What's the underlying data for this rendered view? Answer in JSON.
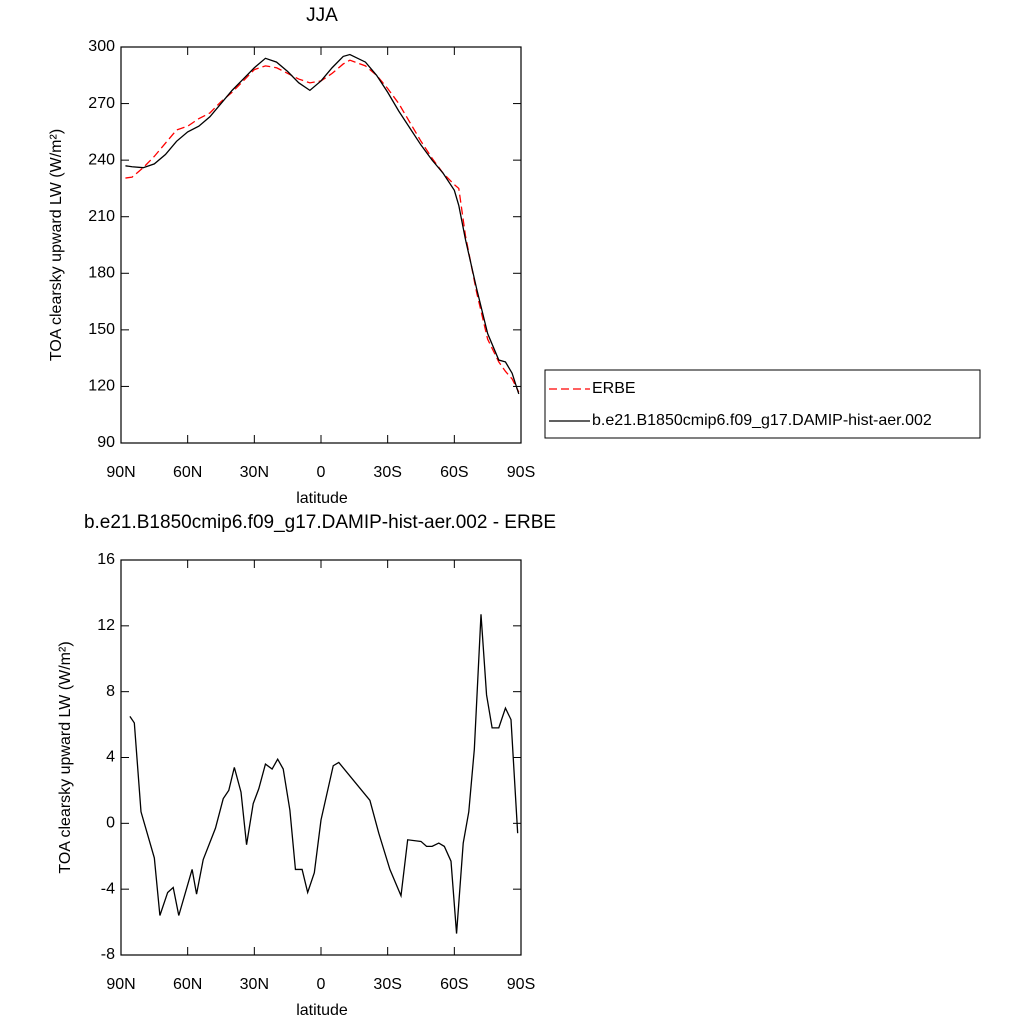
{
  "chart_data": [
    {
      "type": "line",
      "title": "JJA",
      "xlabel": "latitude",
      "ylabel": "TOA clearsky upward LW (W/m²)",
      "x": [
        88,
        85,
        80,
        75,
        70,
        65,
        60,
        55,
        50,
        45,
        40,
        35,
        30,
        25,
        20,
        15,
        10,
        5,
        0,
        -5,
        -10,
        -13,
        -20,
        -25,
        -30,
        -35,
        -40,
        -45,
        -50,
        -55,
        -60,
        -62,
        -65,
        -70,
        -75,
        -80,
        -83,
        -86,
        -89
      ],
      "series": [
        {
          "name": "ERBE",
          "color": "#ff0000",
          "linestyle": "dashed",
          "values": [
            230.5,
            231,
            236,
            242,
            249,
            256,
            258,
            262,
            265,
            271,
            276,
            282,
            288,
            290,
            289,
            286,
            283,
            281,
            282,
            286,
            291,
            293,
            290,
            285,
            278,
            270,
            260,
            250,
            241,
            233,
            227,
            225,
            200,
            170,
            145,
            133,
            128,
            124,
            117
          ]
        },
        {
          "name": "b.e21.B1850cmip6.f09_g17.DAMIP-hist-aer.002",
          "color": "#000000",
          "linestyle": "solid",
          "values": [
            237,
            236.5,
            236,
            238,
            243,
            250,
            255,
            258,
            263,
            270,
            277,
            283,
            289,
            294,
            292,
            287,
            281,
            277,
            282,
            289,
            295,
            296,
            292,
            285,
            276,
            266,
            257,
            248,
            240,
            233,
            224,
            216,
            198,
            172,
            148,
            134,
            133,
            127,
            116
          ]
        }
      ],
      "xlim": [
        90,
        -90
      ],
      "xticks": [
        {
          "value": 90,
          "label": "90N"
        },
        {
          "value": 60,
          "label": "60N"
        },
        {
          "value": 30,
          "label": "30N"
        },
        0,
        {
          "value": -30,
          "label": "30S"
        },
        {
          "value": -60,
          "label": "60S"
        },
        {
          "value": -90,
          "label": "90S"
        }
      ],
      "ylim": [
        90,
        300
      ],
      "yticks": [
        90,
        120,
        150,
        180,
        210,
        240,
        270,
        300
      ]
    },
    {
      "type": "line",
      "title": "b.e21.B1850cmip6.f09_g17.DAMIP-hist-aer.002 - ERBE",
      "xlabel": "latitude",
      "ylabel": "TOA clearsky upward LW (W/m²)",
      "x": [
        86,
        84,
        81,
        75,
        72.5,
        69,
        66.5,
        64,
        58,
        56,
        53,
        47.5,
        44,
        41.5,
        39,
        36,
        33.5,
        30.5,
        28,
        25,
        22,
        19.5,
        17,
        14,
        11.5,
        8.5,
        6,
        3,
        0,
        -5.5,
        -8,
        -22,
        -26,
        -31,
        -36,
        -39,
        -45,
        -47.5,
        -50,
        -53,
        -55.5,
        -58.5,
        -61,
        -64,
        -66.5,
        -69,
        -72,
        -74.5,
        -77,
        -80,
        -83,
        -85.5,
        -88.5
      ],
      "series": [
        {
          "color": "#000000",
          "linestyle": "solid",
          "values": [
            6.5,
            6.1,
            0.7,
            -2.1,
            -5.6,
            -4.2,
            -3.9,
            -5.6,
            -2.8,
            -4.3,
            -2.2,
            -0.3,
            1.5,
            2.0,
            3.4,
            1.9,
            -1.3,
            1.2,
            2.1,
            3.6,
            3.3,
            3.9,
            3.3,
            0.8,
            -2.8,
            -2.8,
            -4.2,
            -3.0,
            0.2,
            3.5,
            3.7,
            1.4,
            -0.6,
            -2.8,
            -4.4,
            -1.0,
            -1.1,
            -1.4,
            -1.4,
            -1.2,
            -1.4,
            -2.3,
            -6.7,
            -1.2,
            0.7,
            4.5,
            12.7,
            7.8,
            5.8,
            5.8,
            7.0,
            6.3,
            -0.6
          ]
        }
      ],
      "xlim": [
        90,
        -90
      ],
      "xticks": [
        {
          "value": 90,
          "label": "90N"
        },
        {
          "value": 60,
          "label": "60N"
        },
        {
          "value": 30,
          "label": "30N"
        },
        0,
        {
          "value": -30,
          "label": "30S"
        },
        {
          "value": -60,
          "label": "60S"
        },
        {
          "value": -90,
          "label": "90S"
        }
      ],
      "ylim": [
        -8,
        16
      ],
      "yticks": [
        -8,
        -4,
        0,
        4,
        8,
        12,
        16
      ]
    }
  ]
}
